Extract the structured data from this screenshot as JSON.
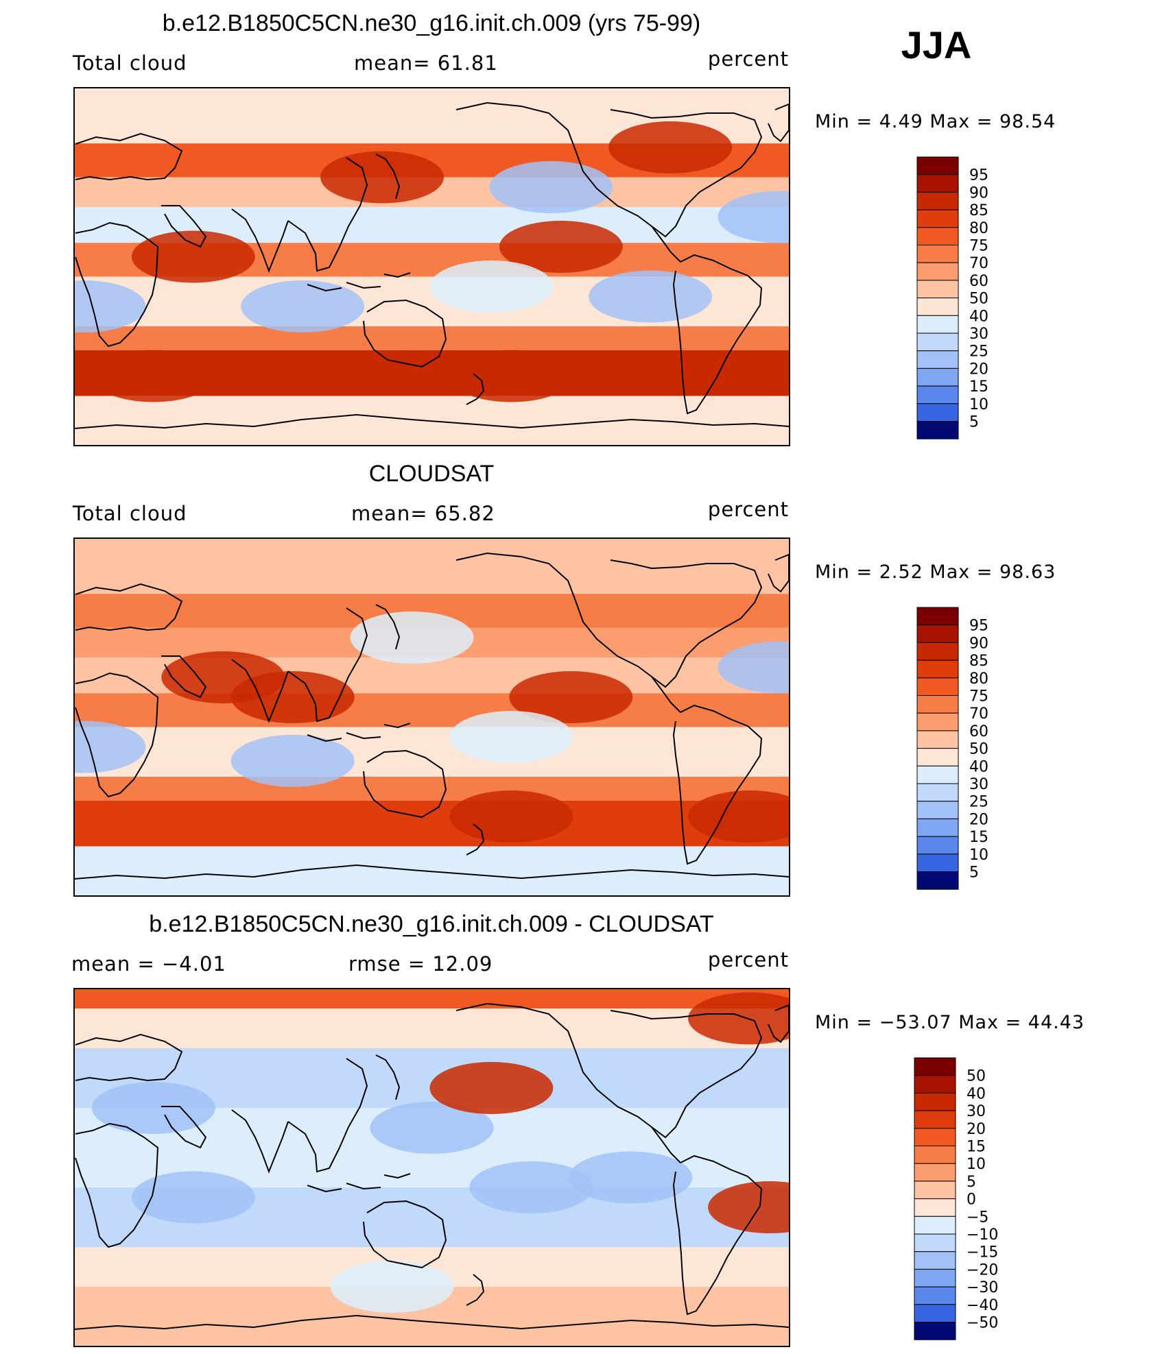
{
  "season": "JJA",
  "colors": {
    "pos": [
      "#7a0000",
      "#a81300",
      "#c92900",
      "#e03d0e",
      "#f05a22",
      "#f77d48",
      "#fb9d6f",
      "#fdc3a3",
      "#fde6d6"
    ],
    "neu": [
      "#dceefc",
      "#c1dafb",
      "#a2c2f7",
      "#80a7f2",
      "#5a87ec",
      "#3866e3",
      "#1b47d7",
      "#0a2cbb",
      "#001a94",
      "#000a72"
    ],
    "outline": "#000000"
  },
  "panels": [
    {
      "id": "model",
      "title": "b.e12.B1850C5CN.ne30_g16.init.ch.009 (yrs 75-99)",
      "left": "Total cloud",
      "center": "mean=   61.81",
      "right": "percent",
      "minmax": "Min  =     4.49  Max  =    98.54",
      "levels": [
        "95",
        "90",
        "85",
        "80",
        "75",
        "70",
        "60",
        "50",
        "40",
        "30",
        "25",
        "20",
        "15",
        "10",
        "5"
      ],
      "features": [
        {
          "lat": 45,
          "lon": 175,
          "kind": "hot"
        },
        {
          "lat": 5,
          "lon": 80,
          "kind": "hot"
        },
        {
          "lat": 10,
          "lon": -95,
          "kind": "hot"
        },
        {
          "lat": 25,
          "lon": 15,
          "kind": "dry"
        },
        {
          "lat": -20,
          "lon": 135,
          "kind": "dry"
        },
        {
          "lat": -15,
          "lon": -50,
          "kind": "dry"
        },
        {
          "lat": 40,
          "lon": -100,
          "kind": "dry"
        },
        {
          "lat": -20,
          "lon": 25,
          "kind": "dry"
        },
        {
          "lat": -10,
          "lon": -130,
          "kind": "mild"
        },
        {
          "lat": -55,
          "lon": 60,
          "kind": "hot"
        },
        {
          "lat": -55,
          "lon": -120,
          "kind": "hot"
        },
        {
          "lat": 60,
          "lon": -40,
          "kind": "hot"
        }
      ]
    },
    {
      "id": "obs",
      "title": "CLOUDSAT",
      "left": "Total cloud",
      "center": "mean=   65.82",
      "right": "percent",
      "minmax": "Min  =     2.52  Max  =    98.63",
      "levels": [
        "95",
        "90",
        "85",
        "80",
        "75",
        "70",
        "60",
        "50",
        "40",
        "30",
        "25",
        "20",
        "15",
        "10",
        "5"
      ],
      "features": [
        {
          "lat": 20,
          "lon": 95,
          "kind": "hot"
        },
        {
          "lat": 10,
          "lon": 130,
          "kind": "hot"
        },
        {
          "lat": 10,
          "lon": -90,
          "kind": "hot"
        },
        {
          "lat": 25,
          "lon": 15,
          "kind": "dry"
        },
        {
          "lat": -22,
          "lon": 130,
          "kind": "dry"
        },
        {
          "lat": -15,
          "lon": 25,
          "kind": "dry"
        },
        {
          "lat": -10,
          "lon": -120,
          "kind": "mild"
        },
        {
          "lat": 40,
          "lon": -170,
          "kind": "mild"
        },
        {
          "lat": -50,
          "lon": 0,
          "kind": "hot"
        },
        {
          "lat": -50,
          "lon": -120,
          "kind": "hot"
        }
      ]
    },
    {
      "id": "diff",
      "title": "b.e12.B1850C5CN.ne30_g16.init.ch.009 - CLOUDSAT",
      "left": "mean  =    −4.01",
      "center": "rmse  =    12.09",
      "right": "percent",
      "minmax": "Min  =  −53.07  Max  =    44.43",
      "levels": [
        "50",
        "40",
        "30",
        "20",
        "15",
        "10",
        "5",
        "0",
        "−5",
        "−10",
        "−15",
        "−20",
        "−30",
        "−40",
        "−50"
      ],
      "features": [
        {
          "lat": 30,
          "lon": 60,
          "kind": "dry"
        },
        {
          "lat": -15,
          "lon": 80,
          "kind": "dry"
        },
        {
          "lat": -5,
          "lon": -60,
          "kind": "dry"
        },
        {
          "lat": 20,
          "lon": -160,
          "kind": "dry"
        },
        {
          "lat": -10,
          "lon": -110,
          "kind": "dry"
        },
        {
          "lat": 75,
          "lon": 0,
          "kind": "hot"
        },
        {
          "lat": 40,
          "lon": -130,
          "kind": "hot"
        },
        {
          "lat": -20,
          "lon": 10,
          "kind": "hot"
        },
        {
          "lat": -60,
          "lon": 180,
          "kind": "mild"
        }
      ]
    }
  ]
}
